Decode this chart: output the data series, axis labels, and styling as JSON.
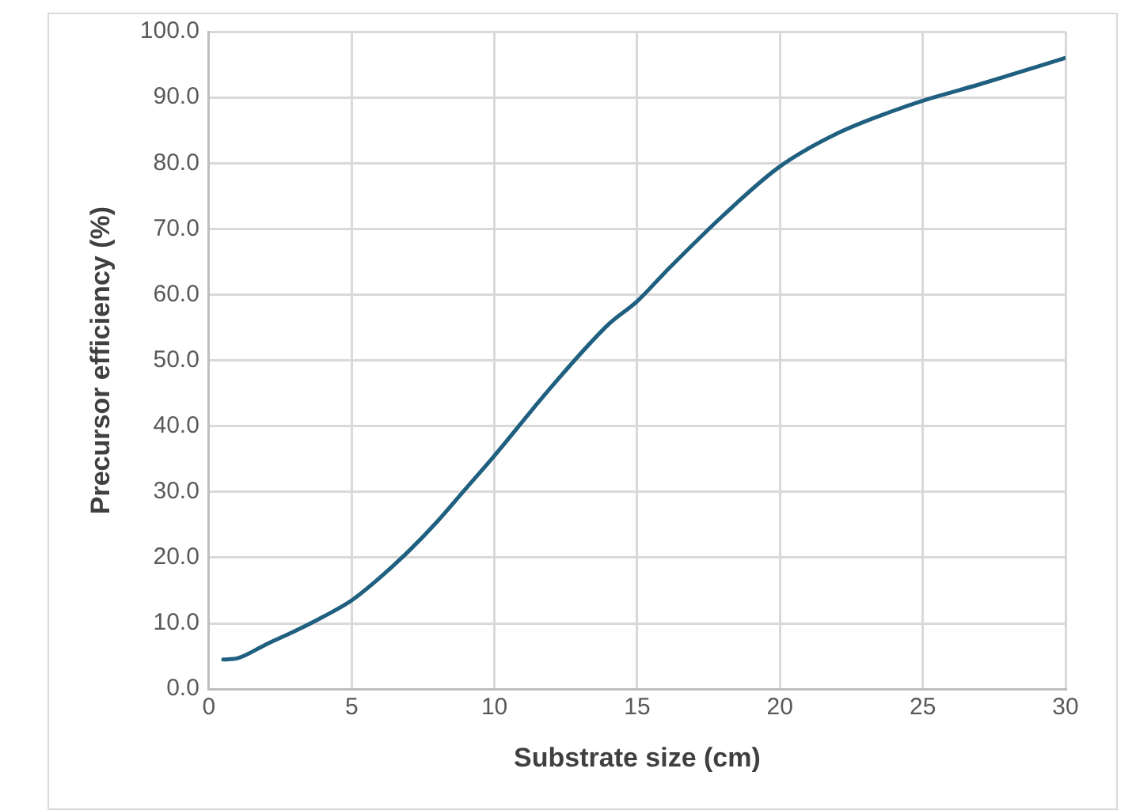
{
  "chart_data": {
    "type": "line",
    "xlabel": "Substrate size (cm)",
    "ylabel": "Precursor efficiency (%)",
    "x": [
      0.5,
      1,
      2,
      3,
      4,
      5,
      6,
      7,
      8,
      9,
      10,
      12,
      14,
      15,
      16,
      18,
      20,
      22,
      24,
      25,
      27,
      30
    ],
    "series": [
      {
        "color": "#1f5f7f",
        "values": [
          4.5,
          4.7,
          6.8,
          8.8,
          11,
          13.5,
          17,
          21,
          25.5,
          30.5,
          35.5,
          46,
          55.5,
          59,
          63.5,
          72,
          79.5,
          84.5,
          88,
          89.5,
          92,
          96
        ]
      }
    ],
    "xlim": [
      0,
      30
    ],
    "xticks": [
      0,
      5,
      10,
      15,
      20,
      25,
      30
    ],
    "ylim": [
      0,
      100
    ],
    "yticks": [
      {
        "value": 0,
        "label": "0.0"
      },
      {
        "value": 10,
        "label": "10.0"
      },
      {
        "value": 20,
        "label": "20.0"
      },
      {
        "value": 30,
        "label": "30.0"
      },
      {
        "value": 40,
        "label": "40.0"
      },
      {
        "value": 50,
        "label": "50.0"
      },
      {
        "value": 60,
        "label": "60.0"
      },
      {
        "value": 70,
        "label": "70.0"
      },
      {
        "value": 80,
        "label": "80.0"
      },
      {
        "value": 90,
        "label": "90.0"
      },
      {
        "value": 100,
        "label": "100.0"
      }
    ],
    "grid": true,
    "legend": false,
    "marker": "none",
    "line_style": "solid"
  }
}
